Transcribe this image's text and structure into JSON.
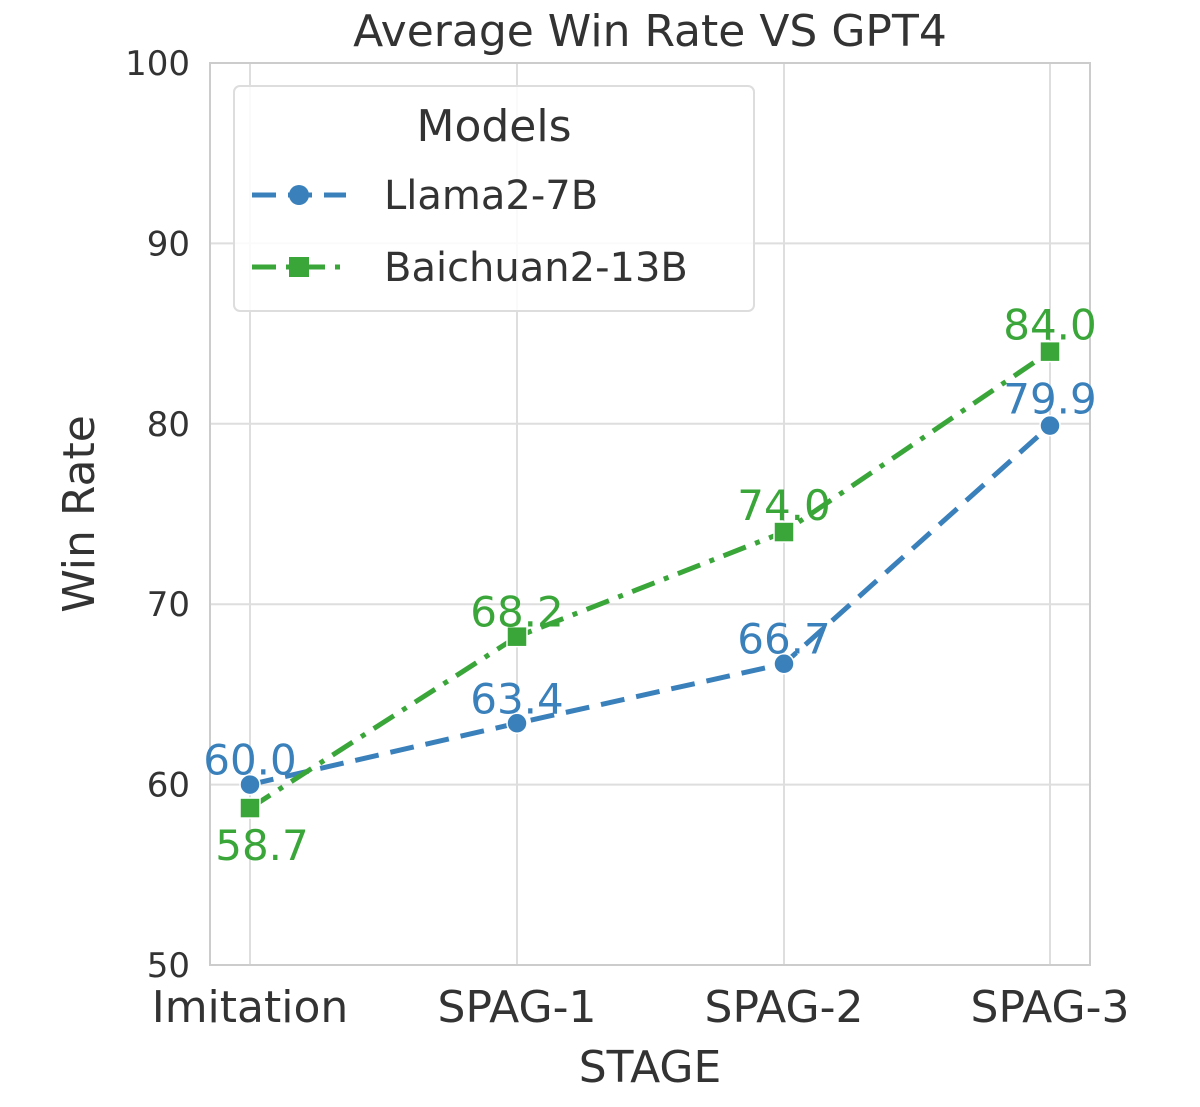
{
  "chart_data": {
    "type": "line",
    "title": "Average Win Rate VS GPT4",
    "xlabel": "STAGE",
    "ylabel": "Win Rate",
    "categories": [
      "Imitation",
      "SPAG-1",
      "SPAG-2",
      "SPAG-3"
    ],
    "ylim": [
      50,
      100
    ],
    "yticks": [
      "50",
      "60",
      "70",
      "80",
      "90",
      "100"
    ],
    "grid": true,
    "legend": {
      "title": "Models",
      "placement": "top-left"
    },
    "series": [
      {
        "name": "Llama2-7B",
        "values": [
          60.0,
          63.4,
          66.7,
          79.9
        ],
        "labels": [
          "60.0",
          "63.4",
          "66.7",
          "79.9"
        ],
        "color": "#3a80bb",
        "linestyle": "dashed",
        "marker": "circle"
      },
      {
        "name": "Baichuan2-13B",
        "values": [
          58.7,
          68.2,
          74.0,
          84.0
        ],
        "labels": [
          "58.7",
          "68.2",
          "74.0",
          "84.0"
        ],
        "color": "#3aa63a",
        "linestyle": "dashdot",
        "marker": "square"
      }
    ]
  }
}
